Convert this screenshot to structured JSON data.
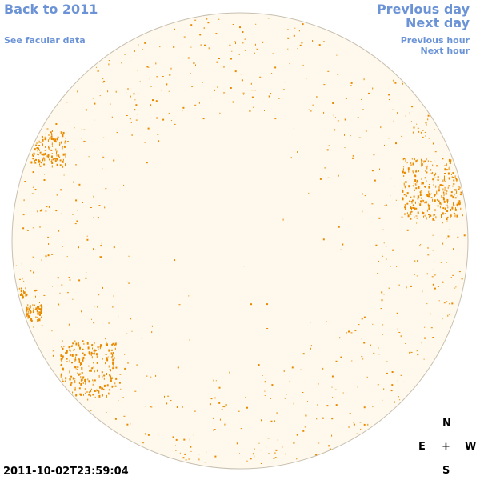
{
  "nav": {
    "back_to_year": "Back to 2011",
    "facular_data": "See facular data",
    "previous_day": "Previous day",
    "next_day": "Next day",
    "previous_hour": "Previous hour",
    "next_hour": "Next hour"
  },
  "compass": {
    "north": "N",
    "east": "E",
    "center": "+",
    "west": "W",
    "south": "S"
  },
  "timestamp": "2011-10-02T23:59:04",
  "colors": {
    "disk_fill": "#fef9ec",
    "disk_edge": "#c8c0b0",
    "facula": "#e88a00",
    "link": "#6b93d6"
  }
}
